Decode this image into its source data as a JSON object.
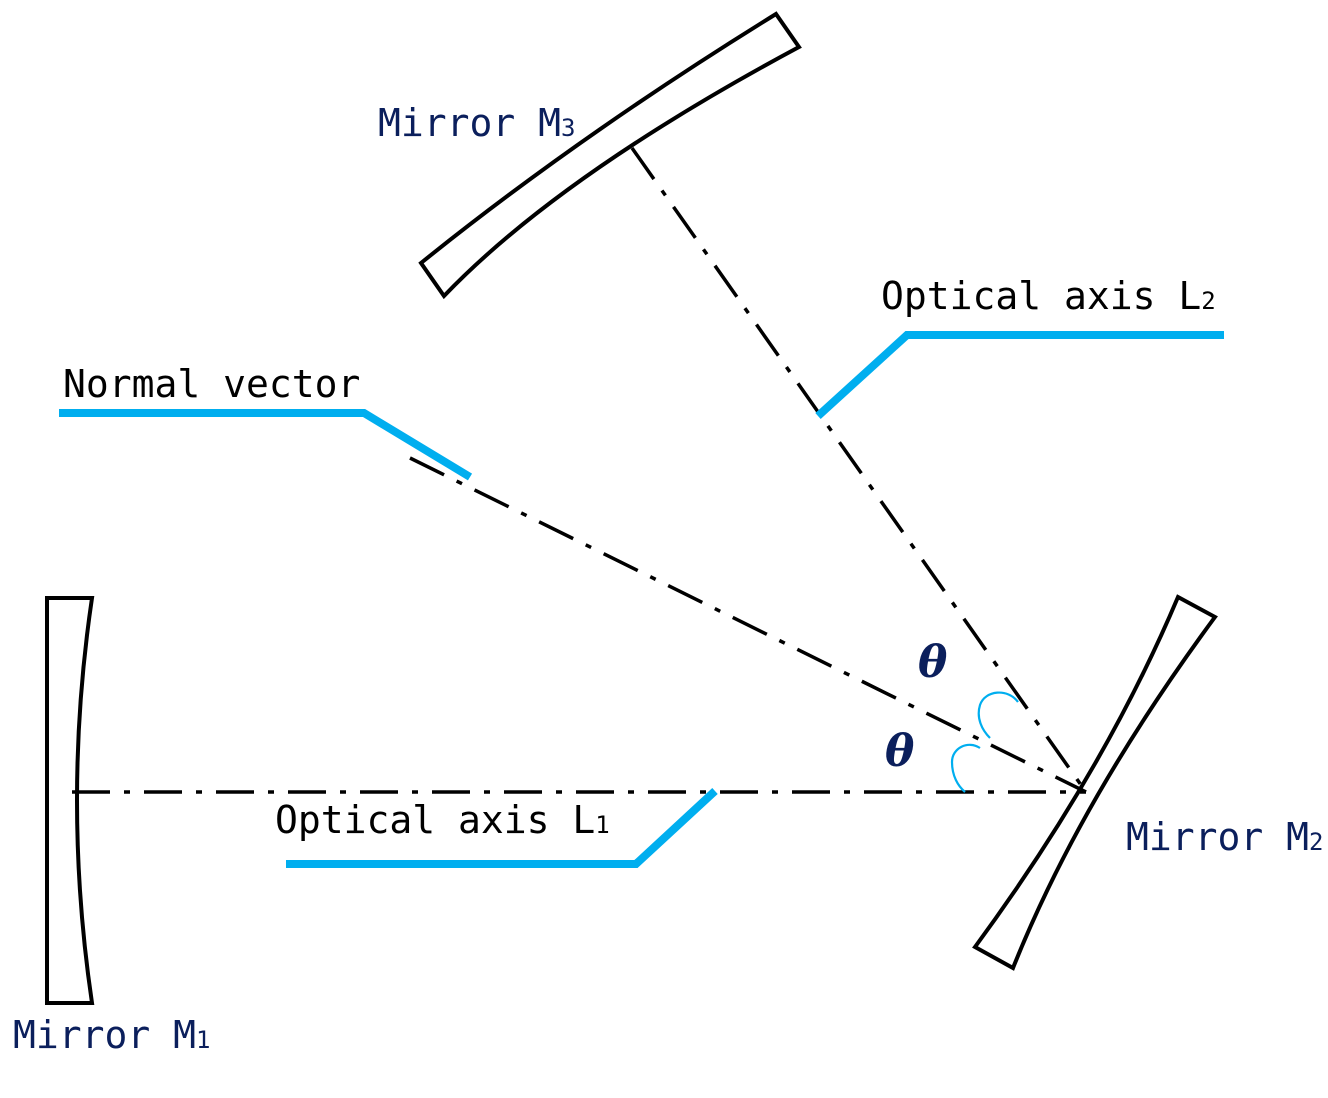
{
  "colors": {
    "label_text": "#0b1f5c",
    "plain_text": "#000000",
    "leader": "#00aeef",
    "angle_arc": "#00aeef"
  },
  "labels": {
    "mirror_m1": {
      "prefix": "Mirror M",
      "sub": "1"
    },
    "mirror_m2": {
      "prefix": "Mirror M",
      "sub": "2"
    },
    "mirror_m3": {
      "prefix": "Mirror M",
      "sub": "3"
    },
    "optical_axis_l1": {
      "prefix": "Optical axis L",
      "sub": "1"
    },
    "optical_axis_l2": {
      "prefix": "Optical axis L",
      "sub": "2"
    },
    "normal_vector": "Normal vector",
    "theta_upper": "θ",
    "theta_lower": "θ"
  }
}
